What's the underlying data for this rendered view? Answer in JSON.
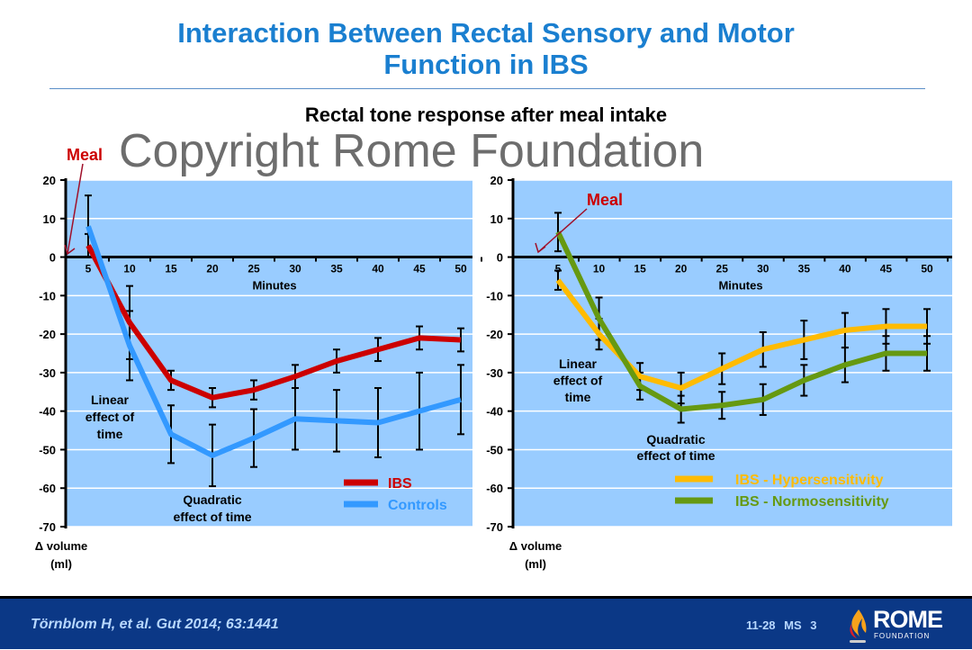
{
  "header": {
    "title_line1": "Interaction Between Rectal Sensory and Motor",
    "title_line2": "Function in IBS",
    "subtitle": "Rectal tone response after meal intake"
  },
  "watermark": "Copyright Rome Foundation",
  "footer": {
    "citation": "Törnblom H, et al. Gut 2014; 63:1441",
    "slide_number": "11-28  MS 3",
    "logo_text": "ROME",
    "logo_subtext": "FOUNDATION"
  },
  "colors": {
    "title": "#1a7fd0",
    "plot_bg": "#99ccff",
    "footer": "#0b3886"
  },
  "chart_data": [
    {
      "type": "line",
      "x": [
        5,
        10,
        15,
        20,
        25,
        30,
        35,
        40,
        45,
        50
      ],
      "xticks": [
        "5",
        "10",
        "15",
        "20",
        "25",
        "30",
        "35",
        "40",
        "45",
        "50"
      ],
      "yticks": [
        "20",
        "10",
        "0",
        "-10",
        "-20",
        "-30",
        "-40",
        "-50",
        "-60",
        "-70"
      ],
      "xlabel": "Minutes",
      "ylabel": [
        "Δ volume",
        "(ml)"
      ],
      "ylim": [
        -70,
        20
      ],
      "grid": true,
      "meal_label": "Meal",
      "annotations": [
        [
          "Linear",
          "effect of",
          "time"
        ],
        [
          "Quadratic",
          "effect of time"
        ]
      ],
      "legend_placement": "bottom-right",
      "series": [
        {
          "name": "IBS",
          "color": "#cc0000",
          "values": [
            3,
            -17,
            -32,
            -36.5,
            -34.5,
            -31,
            -27,
            -24,
            -21,
            -21.5
          ],
          "err": [
            3,
            9.5,
            2.5,
            2.5,
            2.5,
            3,
            3,
            3,
            3,
            3
          ]
        },
        {
          "name": "Controls",
          "color": "#3399ff",
          "values": [
            8,
            -23,
            -46,
            -51.5,
            -47,
            -42,
            -42.5,
            -43,
            -40,
            -37
          ],
          "err": [
            8,
            9,
            7.5,
            8,
            7.5,
            8,
            8,
            9,
            10,
            9
          ]
        }
      ]
    },
    {
      "type": "line",
      "x": [
        5,
        10,
        15,
        20,
        25,
        30,
        35,
        40,
        45,
        50
      ],
      "xticks": [
        "5",
        "10",
        "15",
        "20",
        "25",
        "30",
        "35",
        "40",
        "45",
        "50"
      ],
      "yticks": [
        "20",
        "10",
        "0",
        "-10",
        "-20",
        "-30",
        "-40",
        "-50",
        "-60",
        "-70"
      ],
      "xlabel": "Minutes",
      "ylabel": [
        "Δ volume",
        "(ml)"
      ],
      "ylim": [
        -70,
        20
      ],
      "grid": true,
      "meal_label": "Meal",
      "annotations": [
        [
          "Linear",
          "effect of",
          "time"
        ],
        [
          "Quadratic",
          "effect of time"
        ]
      ],
      "legend_placement": "bottom-right",
      "series": [
        {
          "name": "IBS - Hypersensitivity",
          "color": "#ffbb00",
          "values": [
            -6,
            -20,
            -31,
            -34,
            -29,
            -24,
            -21.5,
            -19,
            -18,
            -18
          ],
          "err": [
            2.5,
            4,
            3.5,
            4,
            4,
            4.5,
            5,
            4.5,
            4.5,
            4.5
          ]
        },
        {
          "name": "IBS - Normosensitivity",
          "color": "#669911",
          "values": [
            6.5,
            -16,
            -33.5,
            -39.5,
            -38.5,
            -37,
            -32,
            -28,
            -25,
            -25
          ],
          "err": [
            5,
            5.5,
            3.5,
            3.5,
            3.5,
            4,
            4,
            4.5,
            4.5,
            4.5
          ]
        }
      ]
    }
  ]
}
